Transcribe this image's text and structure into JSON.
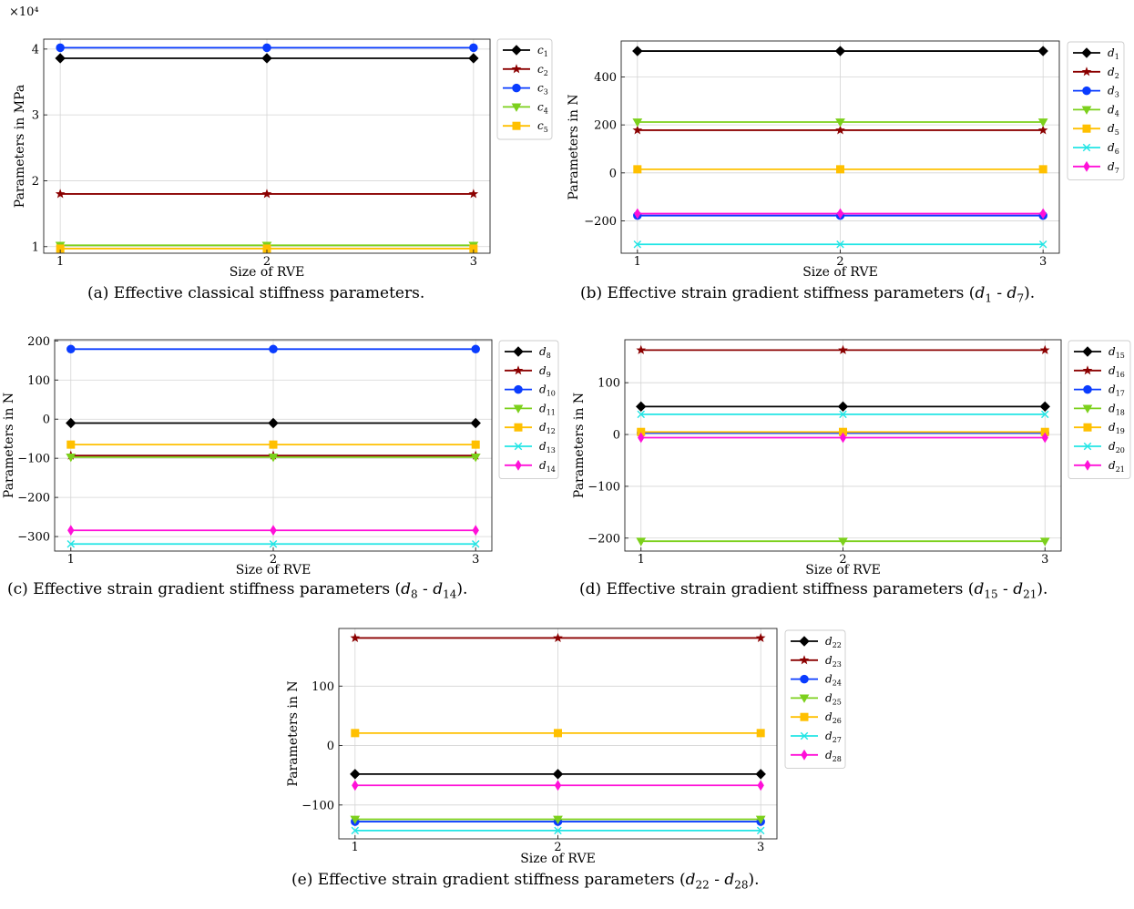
{
  "chart_data": [
    {
      "type": "line",
      "caption": "(a)  Effective classical stiffness parameters.",
      "xlabel": "Size of RVE",
      "ylabel": "Parameters in MPa",
      "multiplier": "×10⁴",
      "x": [
        1,
        2,
        3
      ],
      "xlim": [
        0.92,
        3.08
      ],
      "ylim": [
        0.9,
        4.15
      ],
      "yticks": [
        1,
        2,
        3,
        4
      ],
      "grid": true,
      "legend_position": "outside-right",
      "series": [
        {
          "name": "c1",
          "base": "c",
          "sub": "1",
          "color": "#000000",
          "marker": "diamond",
          "values": [
            3.86,
            3.86,
            3.86
          ]
        },
        {
          "name": "c2",
          "base": "c",
          "sub": "2",
          "color": "#8b0000",
          "marker": "star",
          "values": [
            1.8,
            1.8,
            1.8
          ]
        },
        {
          "name": "c3",
          "base": "c",
          "sub": "3",
          "color": "#0a3cff",
          "marker": "circle",
          "values": [
            4.02,
            4.02,
            4.02
          ]
        },
        {
          "name": "c4",
          "base": "c",
          "sub": "4",
          "color": "#7cd01c",
          "marker": "triangle-down",
          "values": [
            1.02,
            1.02,
            1.02
          ]
        },
        {
          "name": "c5",
          "base": "c",
          "sub": "5",
          "color": "#ffc000",
          "marker": "square",
          "values": [
            0.97,
            0.97,
            0.97
          ]
        }
      ]
    },
    {
      "type": "line",
      "caption": "(b)  Effective strain gradient stiffness parameters (d1 - d7).",
      "caption_parts": [
        "(b)  Effective strain gradient stiffness parameters (",
        "d1",
        " - ",
        "d7",
        ")."
      ],
      "xlabel": "Size of RVE",
      "ylabel": "Parameters in N",
      "x": [
        1,
        2,
        3
      ],
      "xlim": [
        0.92,
        3.08
      ],
      "ylim": [
        -335,
        550
      ],
      "yticks": [
        -200,
        0,
        200,
        400
      ],
      "grid": true,
      "legend_position": "outside-right",
      "series": [
        {
          "name": "d1",
          "base": "d",
          "sub": "1",
          "color": "#000000",
          "marker": "diamond",
          "values": [
            508,
            508,
            508
          ]
        },
        {
          "name": "d2",
          "base": "d",
          "sub": "2",
          "color": "#8b0000",
          "marker": "star",
          "values": [
            178,
            178,
            178
          ]
        },
        {
          "name": "d3",
          "base": "d",
          "sub": "3",
          "color": "#0a3cff",
          "marker": "circle",
          "values": [
            -178,
            -178,
            -178
          ]
        },
        {
          "name": "d4",
          "base": "d",
          "sub": "4",
          "color": "#7cd01c",
          "marker": "triangle-down",
          "values": [
            212,
            212,
            212
          ]
        },
        {
          "name": "d5",
          "base": "d",
          "sub": "5",
          "color": "#ffc000",
          "marker": "square",
          "values": [
            15,
            15,
            15
          ]
        },
        {
          "name": "d6",
          "base": "d",
          "sub": "6",
          "color": "#22e5e5",
          "marker": "x",
          "values": [
            -298,
            -298,
            -298
          ]
        },
        {
          "name": "d7",
          "base": "d",
          "sub": "7",
          "color": "#ff10d8",
          "marker": "thin-diamond",
          "values": [
            -170,
            -170,
            -170
          ]
        }
      ]
    },
    {
      "type": "line",
      "caption": "(c)  Effective strain gradient stiffness parameters (d8 - d14).",
      "caption_parts": [
        "(c)  Effective strain gradient stiffness parameters (",
        "d8",
        " - ",
        "d14",
        ")."
      ],
      "xlabel": "Size of RVE",
      "ylabel": "Parameters in N",
      "x": [
        1,
        2,
        3
      ],
      "xlim": [
        0.92,
        3.08
      ],
      "ylim": [
        -337,
        203
      ],
      "yticks": [
        -300,
        -200,
        -100,
        0,
        100,
        200
      ],
      "grid": true,
      "legend_position": "outside-right",
      "series": [
        {
          "name": "d8",
          "base": "d",
          "sub": "8",
          "color": "#000000",
          "marker": "diamond",
          "values": [
            -10,
            -10,
            -10
          ]
        },
        {
          "name": "d9",
          "base": "d",
          "sub": "9",
          "color": "#8b0000",
          "marker": "star",
          "values": [
            -93,
            -93,
            -93
          ]
        },
        {
          "name": "d10",
          "base": "d",
          "sub": "10",
          "color": "#0a3cff",
          "marker": "circle",
          "values": [
            179,
            179,
            179
          ]
        },
        {
          "name": "d11",
          "base": "d",
          "sub": "11",
          "color": "#7cd01c",
          "marker": "triangle-down",
          "values": [
            -97,
            -97,
            -97
          ]
        },
        {
          "name": "d12",
          "base": "d",
          "sub": "12",
          "color": "#ffc000",
          "marker": "square",
          "values": [
            -65,
            -65,
            -65
          ]
        },
        {
          "name": "d13",
          "base": "d",
          "sub": "13",
          "color": "#22e5e5",
          "marker": "x",
          "values": [
            -319,
            -319,
            -319
          ]
        },
        {
          "name": "d14",
          "base": "d",
          "sub": "14",
          "color": "#ff10d8",
          "marker": "thin-diamond",
          "values": [
            -284,
            -284,
            -284
          ]
        }
      ]
    },
    {
      "type": "line",
      "caption": "(d)  Effective strain gradient stiffness parameters (d15 - d21).",
      "caption_parts": [
        "(d)  Effective strain gradient stiffness parameters (",
        "d15",
        " - ",
        "d21",
        ")."
      ],
      "xlabel": "Size of RVE",
      "ylabel": "Parameters in N",
      "x": [
        1,
        2,
        3
      ],
      "xlim": [
        0.92,
        3.08
      ],
      "ylim": [
        -225,
        183
      ],
      "yticks": [
        -200,
        -100,
        0,
        100
      ],
      "grid": true,
      "legend_position": "outside-right",
      "series": [
        {
          "name": "d15",
          "base": "d",
          "sub": "15",
          "color": "#000000",
          "marker": "diamond",
          "values": [
            54,
            54,
            54
          ]
        },
        {
          "name": "d16",
          "base": "d",
          "sub": "16",
          "color": "#8b0000",
          "marker": "star",
          "values": [
            163,
            163,
            163
          ]
        },
        {
          "name": "d17",
          "base": "d",
          "sub": "17",
          "color": "#0a3cff",
          "marker": "circle",
          "values": [
            3,
            3,
            3
          ]
        },
        {
          "name": "d18",
          "base": "d",
          "sub": "18",
          "color": "#7cd01c",
          "marker": "triangle-down",
          "values": [
            -206,
            -206,
            -206
          ]
        },
        {
          "name": "d19",
          "base": "d",
          "sub": "19",
          "color": "#ffc000",
          "marker": "square",
          "values": [
            5,
            5,
            5
          ]
        },
        {
          "name": "d20",
          "base": "d",
          "sub": "20",
          "color": "#22e5e5",
          "marker": "x",
          "values": [
            39,
            39,
            39
          ]
        },
        {
          "name": "d21",
          "base": "d",
          "sub": "21",
          "color": "#ff10d8",
          "marker": "thin-diamond",
          "values": [
            -6,
            -6,
            -6
          ]
        }
      ]
    },
    {
      "type": "line",
      "caption": "(e)  Effective strain gradient stiffness parameters (d22 - d28).",
      "caption_parts": [
        "(e)  Effective strain gradient stiffness parameters (",
        "d22",
        " - ",
        "d28",
        ")."
      ],
      "xlabel": "Size of RVE",
      "ylabel": "Parameters in N",
      "x": [
        1,
        2,
        3
      ],
      "xlim": [
        0.92,
        3.08
      ],
      "ylim": [
        -157,
        197
      ],
      "yticks": [
        -100,
        0,
        100
      ],
      "grid": true,
      "legend_position": "outside-right",
      "series": [
        {
          "name": "d22",
          "base": "d",
          "sub": "22",
          "color": "#000000",
          "marker": "diamond",
          "values": [
            -48,
            -48,
            -48
          ]
        },
        {
          "name": "d23",
          "base": "d",
          "sub": "23",
          "color": "#8b0000",
          "marker": "star",
          "values": [
            181,
            181,
            181
          ]
        },
        {
          "name": "d24",
          "base": "d",
          "sub": "24",
          "color": "#0a3cff",
          "marker": "circle",
          "values": [
            -128,
            -128,
            -128
          ]
        },
        {
          "name": "d25",
          "base": "d",
          "sub": "25",
          "color": "#7cd01c",
          "marker": "triangle-down",
          "values": [
            -124,
            -124,
            -124
          ]
        },
        {
          "name": "d26",
          "base": "d",
          "sub": "26",
          "color": "#ffc000",
          "marker": "square",
          "values": [
            21,
            21,
            21
          ]
        },
        {
          "name": "d27",
          "base": "d",
          "sub": "27",
          "color": "#22e5e5",
          "marker": "x",
          "values": [
            -143,
            -143,
            -143
          ]
        },
        {
          "name": "d28",
          "base": "d",
          "sub": "28",
          "color": "#ff10d8",
          "marker": "thin-diamond",
          "values": [
            -67,
            -67,
            -67
          ]
        }
      ]
    }
  ]
}
